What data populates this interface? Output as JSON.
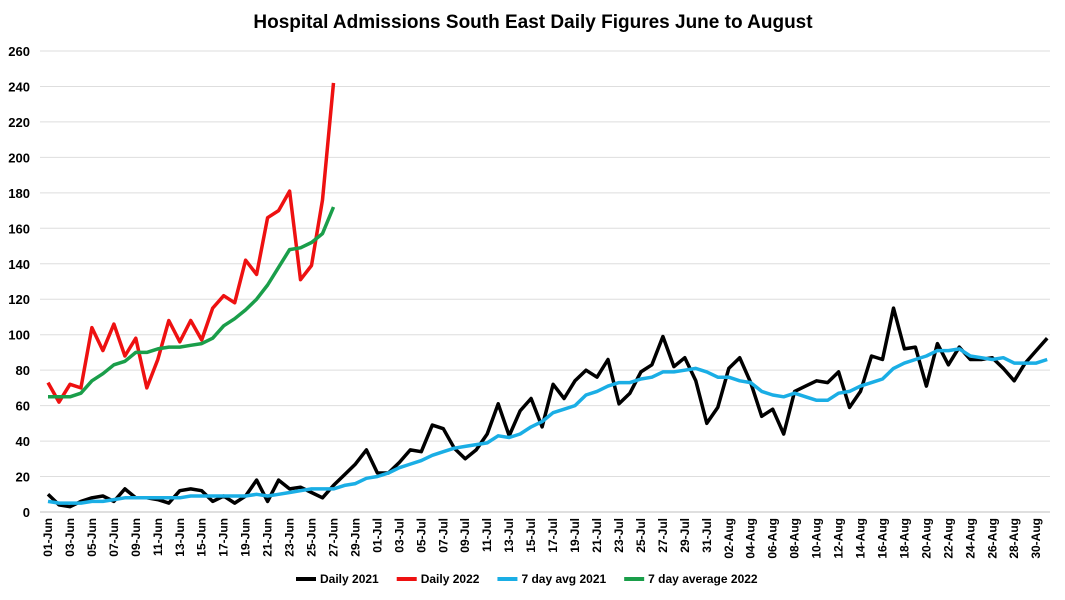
{
  "chart_data": {
    "type": "line",
    "title": "Hospital Admissions South East Daily Figures June to August",
    "xlabel": "",
    "ylabel": "",
    "ylim": [
      0,
      260
    ],
    "yticks": [
      0,
      20,
      40,
      60,
      80,
      100,
      120,
      140,
      160,
      180,
      200,
      220,
      240,
      260
    ],
    "grid": true,
    "legend_position": "bottom",
    "x_start": "01-Jun",
    "xtick_labels": [
      "01-Jun",
      "03-Jun",
      "05-Jun",
      "07-Jun",
      "09-Jun",
      "11-Jun",
      "13-Jun",
      "15-Jun",
      "17-Jun",
      "19-Jun",
      "21-Jun",
      "23-Jun",
      "25-Jun",
      "27-Jun",
      "29-Jun",
      "01-Jul",
      "03-Jul",
      "05-Jul",
      "07-Jul",
      "09-Jul",
      "11-Jul",
      "13-Jul",
      "15-Jul",
      "17-Jul",
      "19-Jul",
      "21-Jul",
      "23-Jul",
      "25-Jul",
      "27-Jul",
      "29-Jul",
      "31-Jul",
      "02-Aug",
      "04-Aug",
      "06-Aug",
      "08-Aug",
      "10-Aug",
      "12-Aug",
      "14-Aug",
      "16-Aug",
      "18-Aug",
      "20-Aug",
      "22-Aug",
      "24-Aug",
      "26-Aug",
      "28-Aug",
      "30-Aug"
    ],
    "series": [
      {
        "name": "Daily 2021",
        "color": "#000000",
        "values": [
          10,
          4,
          3,
          6,
          8,
          9,
          6,
          13,
          8,
          8,
          7,
          5,
          12,
          13,
          12,
          6,
          9,
          5,
          9,
          18,
          6,
          18,
          13,
          14,
          11,
          8,
          15,
          21,
          27,
          35,
          22,
          22,
          28,
          35,
          34,
          49,
          47,
          36,
          30,
          35,
          44,
          61,
          43,
          57,
          64,
          48,
          72,
          64,
          74,
          80,
          76,
          86,
          61,
          67,
          79,
          83,
          99,
          82,
          87,
          74,
          50,
          59,
          81,
          87,
          73,
          54,
          58,
          44,
          68,
          71,
          74,
          73,
          79,
          59,
          68,
          88,
          86,
          115,
          92,
          93,
          71,
          95,
          83,
          93,
          86,
          86,
          87,
          81,
          74,
          84,
          91,
          98
        ]
      },
      {
        "name": "Daily 2022",
        "color": "#ee1111",
        "values": [
          73,
          62,
          72,
          70,
          104,
          91,
          106,
          88,
          98,
          70,
          86,
          108,
          96,
          108,
          97,
          115,
          122,
          118,
          142,
          134,
          166,
          170,
          181,
          131,
          139,
          176,
          242
        ]
      },
      {
        "name": "7 day avg 2021",
        "color": "#1aaee5",
        "values": [
          6,
          5,
          5,
          5,
          6,
          6,
          7,
          8,
          8,
          8,
          8,
          8,
          8,
          9,
          9,
          9,
          9,
          9,
          9,
          10,
          9,
          10,
          11,
          12,
          13,
          13,
          13,
          15,
          16,
          19,
          20,
          22,
          25,
          27,
          29,
          32,
          34,
          36,
          37,
          38,
          39,
          43,
          42,
          44,
          48,
          51,
          56,
          58,
          60,
          66,
          68,
          71,
          73,
          73,
          75,
          76,
          79,
          79,
          80,
          81,
          79,
          76,
          76,
          74,
          73,
          68,
          66,
          65,
          67,
          65,
          63,
          63,
          67,
          68,
          71,
          73,
          75,
          81,
          84,
          86,
          88,
          91,
          91,
          92,
          88,
          87,
          86,
          87,
          84,
          84,
          84,
          86
        ]
      },
      {
        "name": "7 day average 2022",
        "color": "#1a9e4a",
        "values": [
          65,
          65,
          65,
          67,
          74,
          78,
          83,
          85,
          90,
          90,
          92,
          93,
          93,
          94,
          95,
          98,
          105,
          109,
          114,
          120,
          128,
          138,
          148,
          149,
          152,
          157,
          172
        ]
      }
    ]
  }
}
